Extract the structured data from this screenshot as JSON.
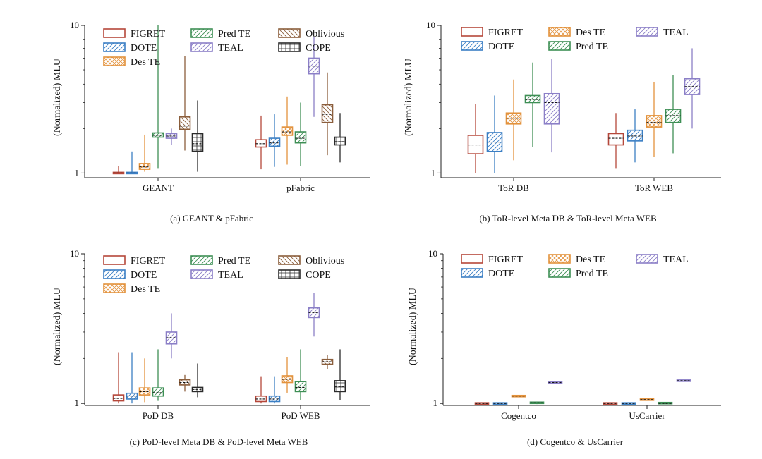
{
  "figure": {
    "colors": {
      "FIGRET": "#b5473a",
      "DOTE": "#3b7fc4",
      "Des TE": "#e3923c",
      "Pred TE": "#3e8f55",
      "TEAL": "#8b7fc7",
      "Oblivious": "#8b5e3c",
      "COPE": "#2b2b2b"
    },
    "patterns": {
      "FIGRET": "none",
      "DOTE": "diag",
      "Des TE": "cross",
      "Pred TE": "diag",
      "TEAL": "diag",
      "Oblivious": "backdiag",
      "COPE": "grid"
    }
  },
  "chart_data": [
    {
      "type": "box",
      "id": "a",
      "caption": "(a) GEANT & pFabric",
      "ylabel": "(Normalized) MLU",
      "yscale": "log",
      "ylim": [
        0.93,
        10
      ],
      "yticks": [
        {
          "v": 1,
          "label": "1"
        },
        {
          "v": 10,
          "label": "10"
        }
      ],
      "categories": [
        "GEANT",
        "pFabric"
      ],
      "legend_order": [
        "FIGRET",
        "Pred TE",
        "Oblivious",
        "DOTE",
        "TEAL",
        "COPE",
        "Des TE"
      ],
      "series": [
        {
          "name": "FIGRET",
          "boxes": [
            [
              1.0,
              1.0,
              1.0,
              1.0,
              1.12
            ],
            [
              1.06,
              1.5,
              1.58,
              1.68,
              2.45
            ]
          ]
        },
        {
          "name": "DOTE",
          "boxes": [
            [
              1.0,
              1.0,
              1.0,
              1.0,
              1.4
            ],
            [
              1.1,
              1.52,
              1.6,
              1.72,
              2.5
            ]
          ]
        },
        {
          "name": "Des TE",
          "boxes": [
            [
              1.02,
              1.06,
              1.1,
              1.16,
              1.82
            ],
            [
              1.14,
              1.8,
              1.9,
              2.05,
              3.3
            ]
          ]
        },
        {
          "name": "Pred TE",
          "boxes": [
            [
              1.08,
              1.75,
              1.8,
              1.87,
              10.0
            ],
            [
              1.12,
              1.6,
              1.72,
              1.9,
              3.0
            ]
          ]
        },
        {
          "name": "TEAL",
          "boxes": [
            [
              1.55,
              1.72,
              1.78,
              1.85,
              2.0
            ],
            [
              2.4,
              4.7,
              5.3,
              6.0,
              8.3
            ]
          ]
        },
        {
          "name": "Oblivious",
          "boxes": [
            [
              1.42,
              1.98,
              2.08,
              2.4,
              6.2
            ],
            [
              1.32,
              2.2,
              2.5,
              2.9,
              4.8
            ]
          ]
        },
        {
          "name": "COPE",
          "boxes": [
            [
              1.02,
              1.4,
              1.58,
              1.85,
              3.1
            ],
            [
              1.18,
              1.55,
              1.63,
              1.75,
              2.55
            ]
          ]
        }
      ]
    },
    {
      "type": "box",
      "id": "b",
      "caption": "(b) ToR-level Meta DB & ToR-level Meta WEB",
      "ylabel": "(Normalized) MLU",
      "yscale": "log",
      "ylim": [
        0.93,
        10
      ],
      "yticks": [
        {
          "v": 1,
          "label": "1"
        },
        {
          "v": 10,
          "label": "10"
        }
      ],
      "categories": [
        "ToR DB",
        "ToR WEB"
      ],
      "legend_order": [
        "FIGRET",
        "Des TE",
        "TEAL",
        "DOTE",
        "Pred TE"
      ],
      "series": [
        {
          "name": "FIGRET",
          "boxes": [
            [
              1.0,
              1.35,
              1.55,
              1.8,
              2.95
            ],
            [
              1.08,
              1.55,
              1.72,
              1.85,
              2.55
            ]
          ]
        },
        {
          "name": "DOTE",
          "boxes": [
            [
              1.0,
              1.4,
              1.62,
              1.88,
              3.35
            ],
            [
              1.18,
              1.65,
              1.78,
              1.95,
              2.7
            ]
          ]
        },
        {
          "name": "Des TE",
          "boxes": [
            [
              1.22,
              2.15,
              2.35,
              2.55,
              4.3
            ],
            [
              1.28,
              2.05,
              2.2,
              2.45,
              4.15
            ]
          ]
        },
        {
          "name": "Pred TE",
          "boxes": [
            [
              1.5,
              3.0,
              3.15,
              3.35,
              5.6
            ],
            [
              1.36,
              2.2,
              2.45,
              2.7,
              4.6
            ]
          ]
        },
        {
          "name": "TEAL",
          "boxes": [
            [
              1.38,
              2.15,
              3.0,
              3.45,
              5.9
            ],
            [
              2.0,
              3.4,
              3.85,
              4.35,
              7.0
            ]
          ]
        }
      ]
    },
    {
      "type": "box",
      "id": "c",
      "caption": "(c) PoD-level Meta DB & PoD-level Meta WEB",
      "ylabel": "(Normalized) MLU",
      "yscale": "log",
      "ylim": [
        0.97,
        10
      ],
      "yticks": [
        {
          "v": 1,
          "label": "1"
        },
        {
          "v": 10,
          "label": "10"
        }
      ],
      "categories": [
        "PoD DB",
        "PoD WEB"
      ],
      "legend_order": [
        "FIGRET",
        "Pred TE",
        "Oblivious",
        "DOTE",
        "TEAL",
        "COPE",
        "Des TE"
      ],
      "series": [
        {
          "name": "FIGRET",
          "boxes": [
            [
              1.0,
              1.04,
              1.08,
              1.14,
              2.2
            ],
            [
              1.0,
              1.03,
              1.07,
              1.12,
              1.52
            ]
          ]
        },
        {
          "name": "DOTE",
          "boxes": [
            [
              1.0,
              1.07,
              1.12,
              1.17,
              2.2
            ],
            [
              1.0,
              1.03,
              1.07,
              1.12,
              1.52
            ]
          ]
        },
        {
          "name": "Des TE",
          "boxes": [
            [
              1.02,
              1.14,
              1.2,
              1.27,
              2.0
            ],
            [
              1.18,
              1.38,
              1.45,
              1.53,
              2.05
            ]
          ]
        },
        {
          "name": "Pred TE",
          "boxes": [
            [
              1.04,
              1.12,
              1.18,
              1.27,
              2.3
            ],
            [
              1.05,
              1.2,
              1.28,
              1.4,
              2.3
            ]
          ]
        },
        {
          "name": "TEAL",
          "boxes": [
            [
              2.0,
              2.5,
              2.75,
              3.0,
              4.0
            ],
            [
              2.8,
              3.75,
              4.05,
              4.35,
              5.5
            ]
          ]
        },
        {
          "name": "Oblivious",
          "boxes": [
            [
              1.2,
              1.33,
              1.38,
              1.44,
              1.55
            ],
            [
              1.7,
              1.83,
              1.9,
              1.97,
              2.1
            ]
          ]
        },
        {
          "name": "COPE",
          "boxes": [
            [
              1.1,
              1.2,
              1.24,
              1.28,
              1.85
            ],
            [
              1.05,
              1.2,
              1.3,
              1.42,
              2.3
            ]
          ]
        }
      ]
    },
    {
      "type": "box",
      "id": "d",
      "caption": "(d) Cogentco & UsCarrier",
      "ylabel": "(Normalized) MLU",
      "yscale": "log",
      "ylim": [
        0.97,
        10
      ],
      "yticks": [
        {
          "v": 1,
          "label": "1"
        },
        {
          "v": 10,
          "label": "10"
        }
      ],
      "categories": [
        "Cogentco",
        "UsCarrier"
      ],
      "legend_order": [
        "FIGRET",
        "Des TE",
        "TEAL",
        "DOTE",
        "Pred TE"
      ],
      "series": [
        {
          "name": "FIGRET",
          "boxes": [
            [
              1.0,
              1.0,
              1.0,
              1.0,
              1.0
            ],
            [
              1.0,
              1.0,
              1.0,
              1.0,
              1.0
            ]
          ]
        },
        {
          "name": "DOTE",
          "boxes": [
            [
              1.0,
              1.0,
              1.0,
              1.0,
              1.0
            ],
            [
              1.0,
              1.0,
              1.0,
              1.0,
              1.0
            ]
          ]
        },
        {
          "name": "Des TE",
          "boxes": [
            [
              1.1,
              1.11,
              1.12,
              1.13,
              1.14
            ],
            [
              1.05,
              1.055,
              1.06,
              1.065,
              1.07
            ]
          ]
        },
        {
          "name": "Pred TE",
          "boxes": [
            [
              0.99,
              1.0,
              1.01,
              1.02,
              1.03
            ],
            [
              0.99,
              1.0,
              1.0,
              1.01,
              1.02
            ]
          ]
        },
        {
          "name": "TEAL",
          "boxes": [
            [
              1.36,
              1.37,
              1.38,
              1.39,
              1.4
            ],
            [
              1.4,
              1.41,
              1.42,
              1.43,
              1.44
            ]
          ]
        }
      ]
    }
  ]
}
